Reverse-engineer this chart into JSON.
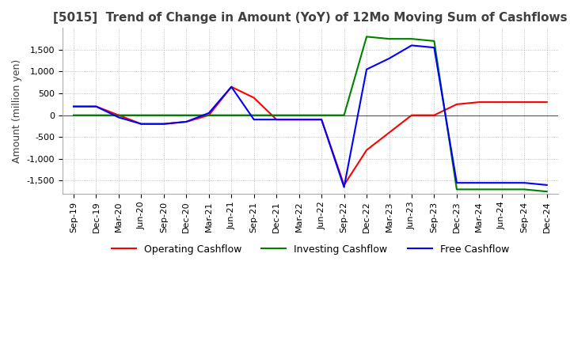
{
  "title": "[5015]  Trend of Change in Amount (YoY) of 12Mo Moving Sum of Cashflows",
  "ylabel": "Amount (million yen)",
  "x_labels": [
    "Sep-19",
    "Dec-19",
    "Mar-20",
    "Jun-20",
    "Sep-20",
    "Dec-20",
    "Mar-21",
    "Jun-21",
    "Sep-21",
    "Dec-21",
    "Mar-22",
    "Jun-22",
    "Sep-22",
    "Dec-22",
    "Mar-23",
    "Jun-23",
    "Sep-23",
    "Dec-23",
    "Mar-24",
    "Jun-24",
    "Sep-24",
    "Dec-24"
  ],
  "operating": [
    200,
    200,
    0,
    -200,
    -200,
    -150,
    0,
    650,
    400,
    -100,
    -100,
    -100,
    -1600,
    -800,
    -400,
    0,
    0,
    250,
    300,
    300,
    300,
    300
  ],
  "investing": [
    0,
    0,
    0,
    0,
    0,
    0,
    0,
    0,
    0,
    0,
    0,
    0,
    0,
    1800,
    1750,
    1750,
    1700,
    -1700,
    -1700,
    -1700,
    -1700,
    -1750
  ],
  "free": [
    200,
    200,
    -50,
    -200,
    -200,
    -150,
    50,
    650,
    -100,
    -100,
    -100,
    -100,
    -1650,
    1050,
    1300,
    1600,
    1550,
    -1550,
    -1550,
    -1550,
    -1550,
    -1600
  ],
  "ylim": [
    -1800,
    2000
  ],
  "yticks": [
    -1500,
    -1000,
    -500,
    0,
    500,
    1000,
    1500
  ],
  "operating_color": "#ff0000",
  "investing_color": "#008000",
  "free_color": "#0000ff",
  "bg_color": "#ffffff",
  "grid_color": "#b0b0b0",
  "title_color": "#404040",
  "title_fontsize": 11,
  "tick_fontsize": 8,
  "ylabel_fontsize": 9
}
